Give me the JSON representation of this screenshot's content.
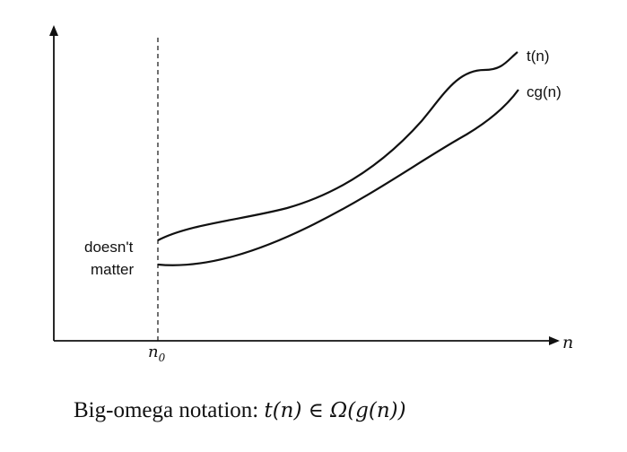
{
  "diagram": {
    "curves": [
      {
        "id": "upper",
        "label": "t(n)"
      },
      {
        "id": "lower",
        "label": "cg(n)"
      }
    ],
    "threshold_label": "n",
    "threshold_subscript": "0",
    "x_axis_label": "n",
    "region_label_line1": "doesn't",
    "region_label_line2": "matter"
  },
  "caption": {
    "text": "Big-omega notation:",
    "formula": "t(n) ∈ Ω(g(n))"
  }
}
